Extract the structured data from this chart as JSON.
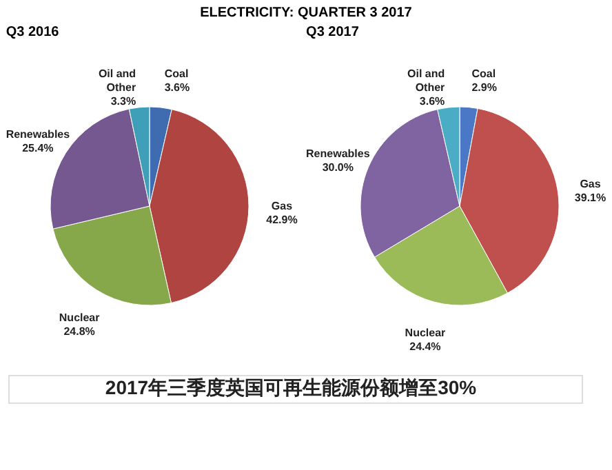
{
  "chart_data": [
    {
      "type": "pie",
      "title": "Q3 2016",
      "annotations": [
        "ELECTRICITY: QUARTER 3 2017"
      ],
      "categories": [
        "Coal",
        "Gas",
        "Nuclear",
        "Renewables",
        "Oil and Other"
      ],
      "values": [
        3.6,
        42.9,
        24.8,
        25.4,
        3.3
      ],
      "value_labels": [
        "3.6%",
        "42.9%",
        "24.8%",
        "25.4%",
        "3.3%"
      ],
      "colors": [
        "#3f6bb0",
        "#b04441",
        "#86a84a",
        "#74588f",
        "#3f9fb8"
      ],
      "legend": false
    },
    {
      "type": "pie",
      "title": "Q3 2017",
      "annotations": [
        "2017年三季度英国可再生能源份额增至30%"
      ],
      "categories": [
        "Coal",
        "Gas",
        "Nuclear",
        "Renewables",
        "Oil and Other"
      ],
      "values": [
        2.9,
        39.1,
        24.4,
        30.0,
        3.6
      ],
      "value_labels": [
        "2.9%",
        "39.1%",
        "24.4%",
        "30.0%",
        "3.6%"
      ],
      "colors": [
        "#4a78c6",
        "#c0504d",
        "#9bbb59",
        "#8064a2",
        "#4bacc6"
      ],
      "legend": false
    }
  ]
}
